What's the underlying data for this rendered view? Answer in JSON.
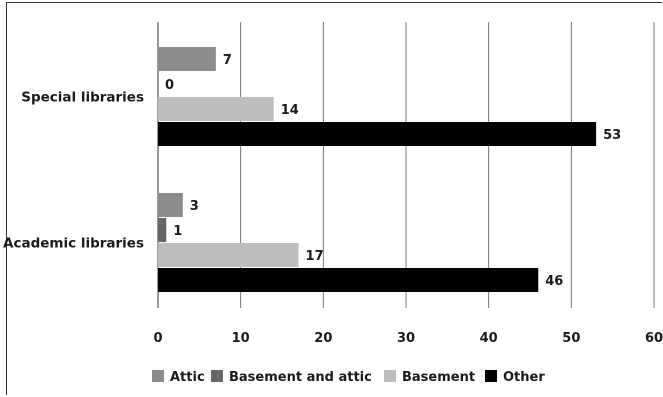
{
  "chart_data": {
    "type": "bar",
    "orientation": "horizontal",
    "categories": [
      "Special libraries",
      "Academic libraries"
    ],
    "series": [
      {
        "name": "Attic",
        "color": "#8c8c8c",
        "values": [
          7,
          3
        ]
      },
      {
        "name": "Basement and attic",
        "color": "#666666",
        "values": [
          0,
          1
        ]
      },
      {
        "name": "Basement",
        "color": "#bdbdbd",
        "values": [
          14,
          17
        ]
      },
      {
        "name": "Other",
        "color": "#000000",
        "values": [
          53,
          46
        ]
      }
    ],
    "xlim": [
      0,
      60
    ],
    "xticks": [
      0,
      10,
      20,
      30,
      40,
      50,
      60
    ],
    "grid": true,
    "legend_position": "bottom"
  }
}
